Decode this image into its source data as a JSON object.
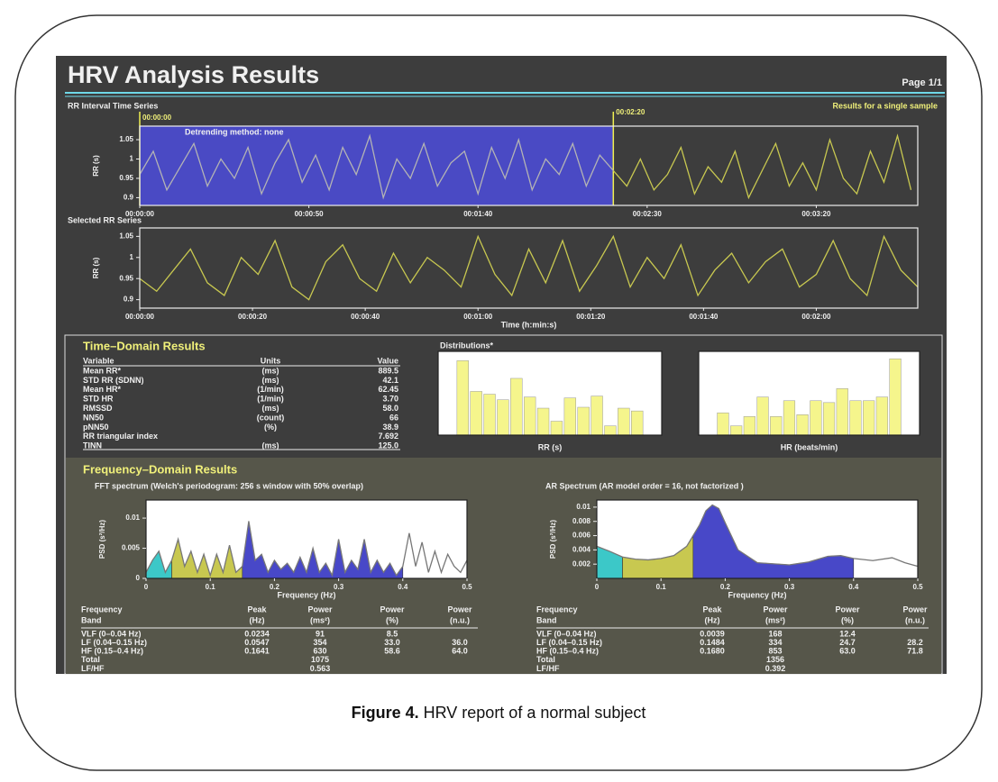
{
  "report": {
    "title": "HRV Analysis Results",
    "page": "Page 1/1",
    "rr_series_title": "RR Interval Time Series",
    "sample_note": "Results for a single sample",
    "selected_title": "Selected RR Series",
    "time_domain": {
      "title": "Time–Domain Results",
      "columns": [
        "Variable",
        "Units",
        "Value"
      ],
      "rows": [
        {
          "variable": "Mean RR*",
          "units": "(ms)",
          "value": "889.5"
        },
        {
          "variable": "STD RR (SDNN)",
          "units": "(ms)",
          "value": "42.1"
        },
        {
          "variable": "Mean HR*",
          "units": "(1/min)",
          "value": "62.45"
        },
        {
          "variable": "STD HR",
          "units": "(1/min)",
          "value": "3.70"
        },
        {
          "variable": "RMSSD",
          "units": "(ms)",
          "value": "58.0"
        },
        {
          "variable": "NN50",
          "units": "(count)",
          "value": "66"
        },
        {
          "variable": "pNN50",
          "units": "(%)",
          "value": "38.9"
        },
        {
          "variable": "RR triangular index",
          "value": "7.692"
        },
        {
          "variable": "TINN",
          "units": "(ms)",
          "value": "125.0"
        }
      ]
    },
    "distributions_title": "Distributions*",
    "frequency_domain": {
      "title": "Frequency–Domain Results",
      "tables": [
        {
          "columns": [
            [
              "Frequency",
              "Band"
            ],
            [
              "Peak",
              "(Hz)"
            ],
            [
              "Power",
              "(ms²)"
            ],
            [
              "Power",
              "(%)"
            ],
            [
              "Power",
              "(n.u.)"
            ]
          ],
          "rows": [
            {
              "band": "VLF (0–0.04 Hz)",
              "peak": "0.0234",
              "power": "91",
              "percent": "8.5"
            },
            {
              "band": "LF (0.04–0.15 Hz)",
              "peak": "0.0547",
              "power": "354",
              "percent": "33.0",
              "nu": "36.0"
            },
            {
              "band": "HF (0.15–0.4 Hz)",
              "peak": "0.1641",
              "power": "630",
              "percent": "58.6",
              "nu": "64.0"
            },
            {
              "band": "Total",
              "power": "1075"
            },
            {
              "band": "LF/HF",
              "power": "0.563"
            }
          ]
        },
        {
          "columns": [
            [
              "Frequency",
              "Band"
            ],
            [
              "Peak",
              "(Hz)"
            ],
            [
              "Power",
              "(ms²)"
            ],
            [
              "Power",
              "(%)"
            ],
            [
              "Power",
              "(n.u.)"
            ]
          ],
          "rows": [
            {
              "band": "VLF (0–0.04 Hz)",
              "peak": "0.0039",
              "power": "168",
              "percent": "12.4"
            },
            {
              "band": "LF (0.04–0.15 Hz)",
              "peak": "0.1484",
              "power": "334",
              "percent": "24.7",
              "nu": "28.2"
            },
            {
              "band": "HF (0.15–0.4 Hz)",
              "peak": "0.1680",
              "power": "853",
              "percent": "63.0",
              "nu": "71.8"
            },
            {
              "band": "Total",
              "power": "1356"
            },
            {
              "band": "LF/HF",
              "power": "0.392"
            }
          ]
        }
      ]
    }
  },
  "caption": {
    "label": "Figure 4.",
    "text": "HRV report of a normal subject"
  },
  "chart_data": [
    {
      "type": "line",
      "y_label": "RR (s)",
      "annotation": "Detrending method: none",
      "plot_background": "#3d3d3d",
      "xlim": [
        0,
        230
      ],
      "ylim": [
        0.88,
        1.085
      ],
      "xticks": [
        {
          "value": 0,
          "label": "00:00:00"
        },
        {
          "value": 50,
          "label": "00:00:50"
        },
        {
          "value": 100,
          "label": "00:01:40"
        },
        {
          "value": 150,
          "label": "00:02:30"
        },
        {
          "value": 200,
          "label": "00:03:20"
        }
      ],
      "yticks": [
        0.9,
        0.95,
        1,
        1.05
      ],
      "selection": {
        "color": "#4a4ac4",
        "range": [
          {
            "value": 0,
            "label": "00:00:00"
          },
          {
            "value": 140,
            "label": "00:02:20"
          }
        ]
      },
      "series": [
        {
          "color": "#b4b4b4",
          "x": [
            0,
            4,
            8,
            12,
            16,
            20,
            24,
            28,
            32,
            36,
            40,
            44,
            48,
            52,
            56,
            60,
            64,
            68,
            72,
            76,
            80,
            84,
            88,
            92,
            96,
            100,
            104,
            108,
            112,
            116,
            120,
            124,
            128,
            132,
            136,
            140
          ],
          "values": [
            0.96,
            1.02,
            0.92,
            0.98,
            1.04,
            0.93,
            1.0,
            0.95,
            1.03,
            0.91,
            0.99,
            1.05,
            0.94,
            1.01,
            0.92,
            1.03,
            0.96,
            1.06,
            0.9,
            1.0,
            0.95,
            1.04,
            0.93,
            0.99,
            1.02,
            0.91,
            1.03,
            0.95,
            1.05,
            0.92,
            1.0,
            0.96,
            1.04,
            0.93,
            1.01,
            0.97
          ]
        },
        {
          "color": "#c8c850",
          "x": [
            140,
            144,
            148,
            152,
            156,
            160,
            164,
            168,
            172,
            176,
            180,
            184,
            188,
            192,
            196,
            200,
            204,
            208,
            212,
            216,
            220,
            224,
            228
          ],
          "values": [
            0.97,
            0.93,
            1.0,
            0.92,
            0.96,
            1.03,
            0.91,
            0.98,
            0.94,
            1.02,
            0.9,
            0.97,
            1.04,
            0.93,
            0.99,
            0.92,
            1.05,
            0.95,
            0.91,
            1.02,
            0.94,
            1.06,
            0.92
          ]
        }
      ]
    },
    {
      "type": "line",
      "y_label": "RR (s)",
      "x_label": "Time (h:min:s)",
      "plot_background": "#3d3d3d",
      "xlim": [
        0,
        138
      ],
      "ylim": [
        0.88,
        1.07
      ],
      "xticks": [
        {
          "value": 0,
          "label": "00:00:00"
        },
        {
          "value": 20,
          "label": "00:00:20"
        },
        {
          "value": 40,
          "label": "00:00:40"
        },
        {
          "value": 60,
          "label": "00:01:00"
        },
        {
          "value": 80,
          "label": "00:01:20"
        },
        {
          "value": 100,
          "label": "00:01:40"
        },
        {
          "value": 120,
          "label": "00:02:00"
        }
      ],
      "yticks": [
        0.9,
        0.95,
        1,
        1.05
      ],
      "series": [
        {
          "color": "#c8c850",
          "x": [
            0,
            3,
            6,
            9,
            12,
            15,
            18,
            21,
            24,
            27,
            30,
            33,
            36,
            39,
            42,
            45,
            48,
            51,
            54,
            57,
            60,
            63,
            66,
            69,
            72,
            75,
            78,
            81,
            84,
            87,
            90,
            93,
            96,
            99,
            102,
            105,
            108,
            111,
            114,
            117,
            120,
            123,
            126,
            129,
            132,
            135,
            138
          ],
          "values": [
            0.95,
            0.92,
            0.97,
            1.02,
            0.94,
            0.91,
            1.0,
            0.96,
            1.04,
            0.93,
            0.9,
            0.99,
            1.03,
            0.95,
            0.92,
            1.01,
            0.94,
            1.0,
            0.97,
            0.93,
            1.05,
            0.96,
            0.91,
            1.02,
            0.94,
            1.04,
            0.92,
            0.98,
            1.05,
            0.93,
            1.0,
            0.95,
            1.03,
            0.91,
            0.97,
            1.01,
            0.94,
            0.99,
            1.02,
            0.93,
            0.96,
            1.04,
            0.95,
            0.91,
            1.05,
            0.97,
            0.93
          ]
        }
      ]
    },
    {
      "type": "histogram",
      "x_label": "RR (s)",
      "color": "#f5f58c",
      "plot_background": "#ffffff",
      "ylim": [
        0,
        90
      ],
      "values": [
        80,
        47,
        44,
        38,
        61,
        41,
        29,
        15,
        40,
        30,
        42,
        10,
        29,
        26
      ]
    },
    {
      "type": "histogram",
      "x_label": "HR (beats/min)",
      "color": "#f5f58c",
      "plot_background": "#ffffff",
      "ylim": [
        0,
        90
      ],
      "values": [
        24,
        10,
        20,
        41,
        20,
        37,
        22,
        37,
        35,
        50,
        37,
        37,
        41,
        82
      ]
    },
    {
      "type": "spectrum",
      "title": "FFT spectrum   (Welch's periodogram: 256 s window with 50% overlap)",
      "y_label": "PSD (s²/Hz)",
      "x_label": "Frequency (Hz)",
      "plot_background": "#ffffff",
      "xlim": [
        0,
        0.5
      ],
      "ylim": [
        0,
        0.013
      ],
      "xticks": [
        0,
        0.1,
        0.2,
        0.3,
        0.4,
        0.5
      ],
      "yticks": [
        0,
        0.005,
        0.01
      ],
      "bands": [
        {
          "range": [
            0,
            0.04
          ],
          "color": "#3cc8c8"
        },
        {
          "range": [
            0.04,
            0.15
          ],
          "color": "#c8c850"
        },
        {
          "range": [
            0.15,
            0.4
          ],
          "color": "#4848c8"
        }
      ],
      "series": [
        {
          "color": "#777777",
          "x": [
            0,
            0.01,
            0.02,
            0.03,
            0.04,
            0.05,
            0.06,
            0.07,
            0.08,
            0.09,
            0.1,
            0.11,
            0.12,
            0.13,
            0.14,
            0.15,
            0.16,
            0.17,
            0.18,
            0.19,
            0.2,
            0.21,
            0.22,
            0.23,
            0.24,
            0.25,
            0.26,
            0.27,
            0.28,
            0.29,
            0.3,
            0.31,
            0.32,
            0.33,
            0.34,
            0.35,
            0.36,
            0.37,
            0.38,
            0.39,
            0.4,
            0.41,
            0.42,
            0.43,
            0.44,
            0.45,
            0.46,
            0.47,
            0.48,
            0.49,
            0.5
          ],
          "values": [
            0.001,
            0.003,
            0.0045,
            0.001,
            0.003,
            0.0065,
            0.002,
            0.0045,
            0.001,
            0.004,
            0.0005,
            0.004,
            0.001,
            0.0055,
            0.001,
            0.002,
            0.0095,
            0.003,
            0.004,
            0.001,
            0.003,
            0.0015,
            0.0025,
            0.001,
            0.0035,
            0.001,
            0.005,
            0.001,
            0.0025,
            0.0005,
            0.0065,
            0.001,
            0.003,
            0.0015,
            0.0065,
            0.001,
            0.003,
            0.001,
            0.0025,
            0.0005,
            0.002,
            0.0075,
            0.002,
            0.006,
            0.001,
            0.0045,
            0.001,
            0.004,
            0.002,
            0.001,
            0.003
          ]
        }
      ]
    },
    {
      "type": "spectrum",
      "title": "AR Spectrum   (AR model order = 16, not factorized )",
      "y_label": "PSD (s²/Hz)",
      "x_label": "Frequency (Hz)",
      "plot_background": "#ffffff",
      "xlim": [
        0,
        0.5
      ],
      "ylim": [
        0,
        0.011
      ],
      "xticks": [
        0,
        0.1,
        0.2,
        0.3,
        0.4,
        0.5
      ],
      "yticks": [
        0.002,
        0.004,
        0.006,
        0.008,
        0.01
      ],
      "bands": [
        {
          "range": [
            0,
            0.04
          ],
          "color": "#3cc8c8"
        },
        {
          "range": [
            0.04,
            0.15
          ],
          "color": "#c8c850"
        },
        {
          "range": [
            0.15,
            0.4
          ],
          "color": "#4848c8"
        }
      ],
      "series": [
        {
          "color": "#777777",
          "x": [
            0,
            0.02,
            0.04,
            0.06,
            0.08,
            0.1,
            0.12,
            0.14,
            0.16,
            0.17,
            0.18,
            0.19,
            0.2,
            0.22,
            0.25,
            0.3,
            0.33,
            0.36,
            0.38,
            0.4,
            0.43,
            0.46,
            0.48,
            0.5
          ],
          "values": [
            0.0045,
            0.0038,
            0.003,
            0.0027,
            0.0026,
            0.0028,
            0.0032,
            0.0045,
            0.0075,
            0.0095,
            0.0103,
            0.0098,
            0.0078,
            0.004,
            0.0022,
            0.0019,
            0.0023,
            0.0031,
            0.0032,
            0.0028,
            0.0025,
            0.0029,
            0.0022,
            0.0017
          ]
        }
      ]
    }
  ]
}
